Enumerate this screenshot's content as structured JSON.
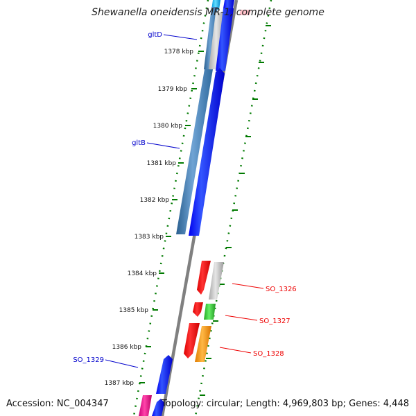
{
  "title": "Shewanella oneidensis MR-1, complete genome",
  "accession": "Accession: NC_004347",
  "topology": "Topology: circular; Length: 4,969,803 bp; Genes: 4,448",
  "colors": {
    "backbone": "#808080",
    "ticks": "#007a00",
    "plus_label": "#0000cc",
    "minus_label": "#ee0000",
    "steelblue": "#4682b4",
    "blue": "#0000ff",
    "red": "#ff0000",
    "gray": "#c0c0c0",
    "green": "#33cc33",
    "orange": "#ff9900",
    "magenta": "#ee1199",
    "cyan": "#00ccff",
    "pink": "#ffb6c1"
  },
  "scale": {
    "unit": "kbp",
    "ticks": [
      "1378 kbp",
      "1379 kbp",
      "1380 kbp",
      "1381 kbp",
      "1382 kbp",
      "1383 kbp",
      "1384 kbp",
      "1385 kbp",
      "1386 kbp",
      "1387 kbp"
    ]
  },
  "gene_labels": {
    "gltD": "gltD",
    "gltB": "gltB",
    "SO_1326": "SO_1326",
    "SO_1327": "SO_1327",
    "SO_1328": "SO_1328",
    "SO_1329": "SO_1329"
  }
}
